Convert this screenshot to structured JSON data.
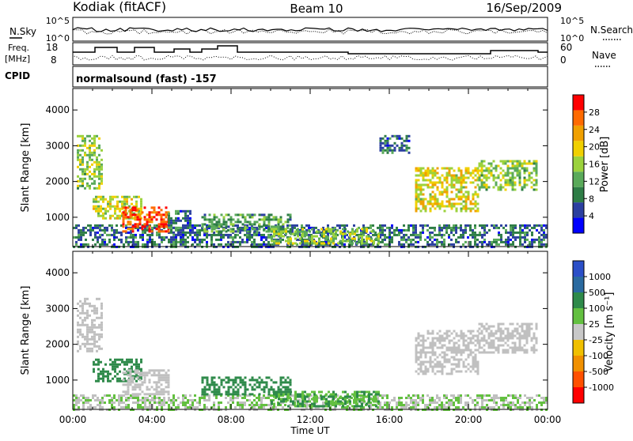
{
  "header": {
    "station": "Kodiak (fitACF)",
    "beam": "Beam 10",
    "date": "16/Sep/2009"
  },
  "summary": {
    "nsky_label": "N.Sky",
    "nsearch_label": "N.Search",
    "noise_ticks": [
      "10^5",
      "10^0"
    ],
    "freq_label": "Freq.",
    "freq_unit": "[MHz]",
    "freq_ticks": [
      "18",
      "8"
    ],
    "nave_label": "Nave",
    "nave_ticks": [
      "60",
      "0"
    ],
    "cpid_label": "CPID",
    "cpid_text": "normalsound (fast) -157"
  },
  "colors": {
    "power_scale": [
      "#0000ff",
      "#2b3fa0",
      "#2e7d46",
      "#5aaa5a",
      "#9bd23c",
      "#f0d000",
      "#f0a000",
      "#ff6a00",
      "#ff0000"
    ],
    "velocity_scale": [
      "#2b4fc8",
      "#2a6aa0",
      "#2e8a4a",
      "#63c040",
      "#c8c8c8",
      "#f0c000",
      "#f09000",
      "#ff5000",
      "#ff0000"
    ],
    "ground_scatter": "#c0c0c0"
  },
  "chart_data": [
    {
      "type": "heatmap",
      "panel": "power",
      "title": "",
      "xlabel": "Time UT",
      "ylabel": "Slant Range [km]",
      "x_ticks": [
        "00:00",
        "04:00",
        "08:00",
        "12:00",
        "16:00",
        "20:00",
        "00:00"
      ],
      "y_ticks": [
        "1000",
        "2000",
        "3000",
        "4000"
      ],
      "xlim_hours": [
        0,
        24
      ],
      "ylim_km": [
        180,
        4600
      ],
      "colorbar": {
        "label": "Power [dB]",
        "ticks": [
          "4",
          "8",
          "12",
          "16",
          "20",
          "24",
          "28"
        ],
        "range": [
          0,
          30
        ]
      },
      "regions": [
        {
          "t0": 0.0,
          "t1": 24.0,
          "r0": 200,
          "r1": 800,
          "value": 6
        },
        {
          "t0": 0.2,
          "t1": 1.5,
          "r0": 1800,
          "r1": 3300,
          "value": 14
        },
        {
          "t0": 1.0,
          "t1": 3.5,
          "r0": 1000,
          "r1": 1600,
          "value": 16
        },
        {
          "t0": 2.5,
          "t1": 4.8,
          "r0": 600,
          "r1": 1300,
          "value": 28
        },
        {
          "t0": 4.8,
          "t1": 6.0,
          "r0": 500,
          "r1": 1200,
          "value": 6
        },
        {
          "t0": 6.5,
          "t1": 11.0,
          "r0": 600,
          "r1": 1100,
          "value": 10
        },
        {
          "t0": 10.0,
          "t1": 15.5,
          "r0": 300,
          "r1": 700,
          "value": 14
        },
        {
          "t0": 15.5,
          "t1": 17.0,
          "r0": 2800,
          "r1": 3300,
          "value": 6
        },
        {
          "t0": 17.3,
          "t1": 20.5,
          "r0": 1200,
          "r1": 2400,
          "value": 18
        },
        {
          "t0": 20.5,
          "t1": 23.5,
          "r0": 1800,
          "r1": 2600,
          "value": 14
        }
      ]
    },
    {
      "type": "heatmap",
      "panel": "velocity",
      "title": "",
      "xlabel": "Time UT",
      "ylabel": "Slant Range [km]",
      "x_ticks": [
        "00:00",
        "04:00",
        "08:00",
        "12:00",
        "16:00",
        "20:00",
        "00:00"
      ],
      "y_ticks": [
        "1000",
        "2000",
        "3000",
        "4000"
      ],
      "xlim_hours": [
        0,
        24
      ],
      "ylim_km": [
        180,
        4600
      ],
      "colorbar": {
        "label": "Velocity [m s⁻¹]",
        "ticks": [
          "1000",
          "500",
          "100",
          "25",
          "-25",
          "-100",
          "-500",
          "-1000"
        ]
      },
      "regions": [
        {
          "t0": 0.0,
          "t1": 24.0,
          "r0": 200,
          "r1": 600,
          "value": 25
        },
        {
          "t0": 0.2,
          "t1": 1.5,
          "r0": 1800,
          "r1": 3300,
          "value": 0
        },
        {
          "t0": 1.0,
          "t1": 3.5,
          "r0": 1000,
          "r1": 1600,
          "value": 100
        },
        {
          "t0": 2.5,
          "t1": 4.8,
          "r0": 600,
          "r1": 1300,
          "value": 0
        },
        {
          "t0": 6.5,
          "t1": 11.0,
          "r0": 600,
          "r1": 1100,
          "value": 100
        },
        {
          "t0": 10.0,
          "t1": 15.5,
          "r0": 300,
          "r1": 700,
          "value": 50
        },
        {
          "t0": 17.3,
          "t1": 20.5,
          "r0": 1200,
          "r1": 2400,
          "value": 0
        },
        {
          "t0": 20.5,
          "t1": 23.5,
          "r0": 1800,
          "r1": 2600,
          "value": 0
        }
      ]
    }
  ]
}
